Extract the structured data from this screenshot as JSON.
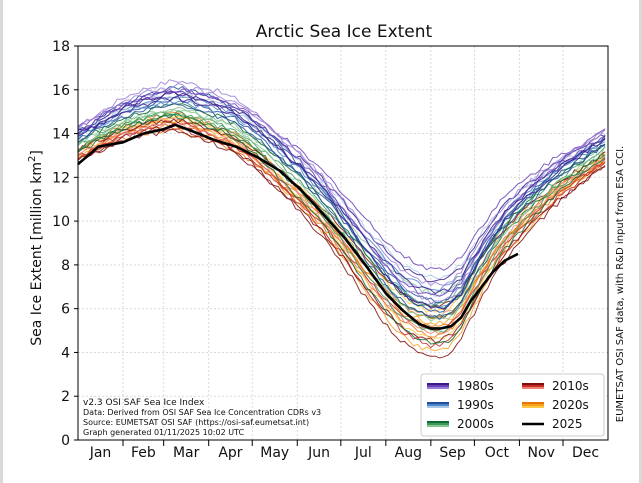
{
  "chart_data": {
    "type": "line",
    "title": "Arctic Sea Ice Extent",
    "ylabel_main": "Sea Ice Extent [million km",
    "ylabel_sup": "2",
    "ylabel_end": "]",
    "ylim": [
      0,
      18
    ],
    "yticks": [
      "0",
      "2",
      "4",
      "6",
      "8",
      "10",
      "12",
      "14",
      "16",
      "18"
    ],
    "months": [
      "Jan",
      "Feb",
      "Mar",
      "Apr",
      "May",
      "Jun",
      "Jul",
      "Aug",
      "Sep",
      "Oct",
      "Nov",
      "Dec"
    ],
    "grid": true,
    "legend_placement": "lower-right",
    "info_lines": [
      "v2.3 OSI SAF Sea Ice Index",
      "Data: Derived from OSI SAF Sea Ice Concentration CDRs v3",
      "Source: EUMETSAT OSI SAF (https://osi-saf.eumetsat.int)",
      "Graph generated 01/11/2025 10:02 UTC"
    ],
    "side_note": "EUMETSAT OSI SAF data, with R&D input from ESA CCI.",
    "series": [
      {
        "name": "1980s",
        "colors": [
          "#3b1a8c",
          "#6a3fb8",
          "#9a7fd6"
        ],
        "offset": 0.9
      },
      {
        "name": "1990s",
        "colors": [
          "#1f4e9c",
          "#4c86c9",
          "#a8c6e8"
        ],
        "offset": 0.4
      },
      {
        "name": "2000s",
        "colors": [
          "#0f6b33",
          "#3c9a5a",
          "#86c48f"
        ],
        "offset": -0.4
      },
      {
        "name": "2010s",
        "colors": [
          "#7f0e0e",
          "#c42a2a",
          "#f08070"
        ],
        "offset": -1.1
      },
      {
        "name": "2020s",
        "colors": [
          "#e8720c",
          "#f6a21c",
          "#fbc84a"
        ],
        "offset": -0.9
      },
      {
        "name": "2025",
        "colors": [
          "#000000"
        ],
        "offset": 0
      }
    ],
    "line_2025": {
      "doy": [
        1,
        15,
        32,
        46,
        60,
        68,
        80,
        95,
        110,
        125,
        140,
        155,
        170,
        185,
        200,
        213,
        225,
        236,
        244,
        251,
        258,
        265,
        272,
        279,
        287,
        295,
        304
      ],
      "extent": [
        12.6,
        13.4,
        13.6,
        14.0,
        14.2,
        14.4,
        14.1,
        13.7,
        13.4,
        12.9,
        12.3,
        11.4,
        10.3,
        9.2,
        7.9,
        6.7,
        5.9,
        5.3,
        5.1,
        5.1,
        5.2,
        5.6,
        6.4,
        7.0,
        7.7,
        8.2,
        8.5
      ]
    },
    "climatology_base": {
      "doy": [
        1,
        15,
        32,
        46,
        60,
        68,
        80,
        95,
        110,
        125,
        140,
        155,
        170,
        185,
        200,
        213,
        225,
        236,
        244,
        251,
        258,
        265,
        272,
        279,
        287,
        295,
        305,
        320,
        335,
        350,
        365
      ],
      "extent": [
        13.6,
        14.1,
        14.7,
        15.0,
        15.2,
        15.3,
        15.1,
        14.8,
        14.4,
        13.7,
        12.8,
        11.9,
        10.9,
        9.7,
        8.4,
        7.4,
        6.6,
        6.2,
        6.0,
        6.0,
        6.2,
        6.7,
        7.5,
        8.3,
        9.1,
        9.8,
        10.5,
        11.4,
        12.2,
        12.8,
        13.5
      ]
    }
  }
}
